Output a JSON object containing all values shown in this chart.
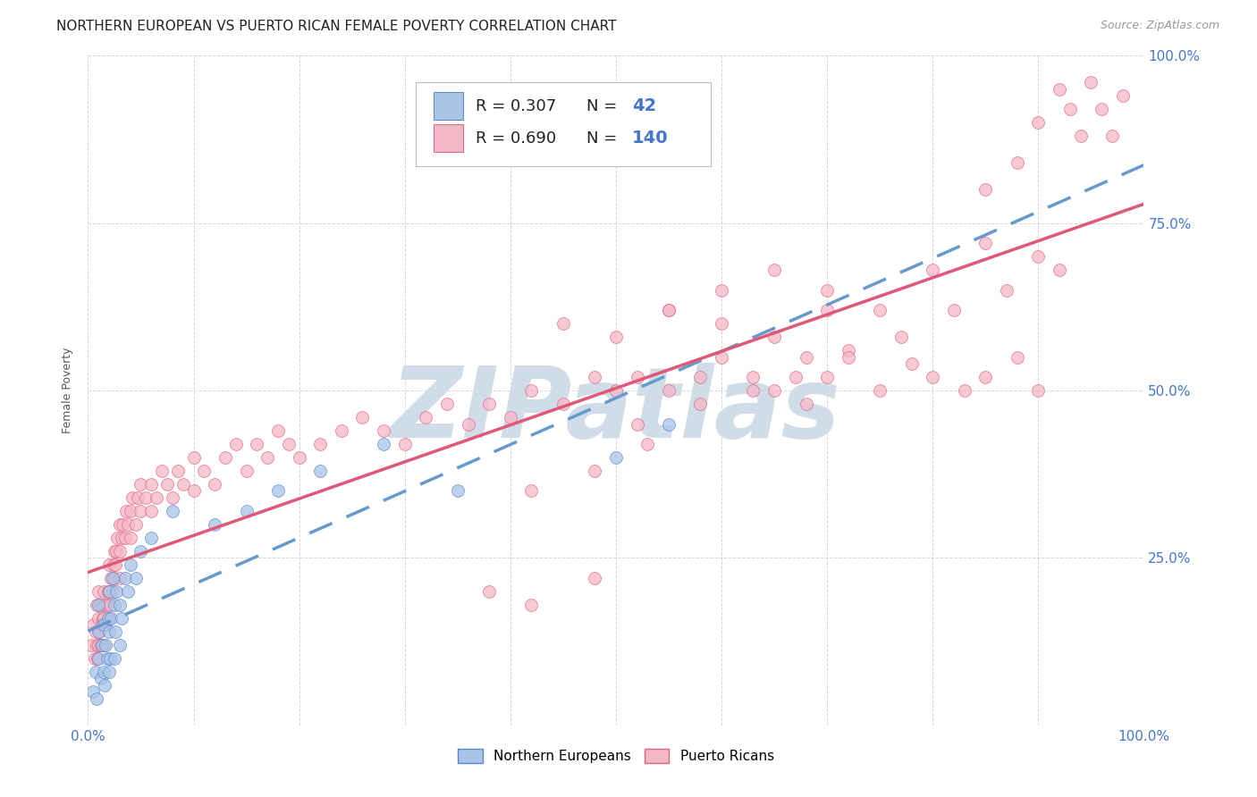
{
  "title": "NORTHERN EUROPEAN VS PUERTO RICAN FEMALE POVERTY CORRELATION CHART",
  "source": "Source: ZipAtlas.com",
  "ylabel": "Female Poverty",
  "xlim": [
    0.0,
    1.0
  ],
  "ylim": [
    0.0,
    1.0
  ],
  "xtick_positions": [
    0.0,
    0.1,
    0.2,
    0.3,
    0.4,
    0.5,
    0.6,
    0.7,
    0.8,
    0.9,
    1.0
  ],
  "xtick_labels_show": {
    "0.0": "0.0%",
    "1.0": "100.0%"
  },
  "ytick_positions": [
    0.0,
    0.25,
    0.5,
    0.75,
    1.0
  ],
  "ytick_right_labels": [
    "0.0%",
    "25.0%",
    "50.0%",
    "75.0%",
    "100.0%"
  ],
  "group1_name": "Northern Europeans",
  "group1_R": 0.307,
  "group1_N": 42,
  "group1_color": "#aac4e8",
  "group1_edge_color": "#5588cc",
  "group1_line_color": "#6699cc",
  "group2_name": "Puerto Ricans",
  "group2_R": 0.69,
  "group2_N": 140,
  "group2_color": "#f5b8c8",
  "group2_edge_color": "#e06080",
  "group2_line_color": "#e05878",
  "watermark_color": "#d0dde8",
  "background_color": "#ffffff",
  "grid_color": "#cccccc",
  "title_fontsize": 11,
  "axis_label_fontsize": 9,
  "tick_fontsize": 11,
  "right_ytick_color": "#4477cc",
  "legend_text_color": "#222222",
  "legend_N_color": "#4477cc",
  "group1_x": [
    0.005,
    0.007,
    0.008,
    0.01,
    0.01,
    0.01,
    0.012,
    0.013,
    0.015,
    0.015,
    0.016,
    0.017,
    0.018,
    0.019,
    0.02,
    0.02,
    0.02,
    0.021,
    0.022,
    0.023,
    0.025,
    0.025,
    0.026,
    0.027,
    0.03,
    0.03,
    0.032,
    0.035,
    0.038,
    0.04,
    0.045,
    0.05,
    0.06,
    0.08,
    0.12,
    0.15,
    0.18,
    0.22,
    0.28,
    0.35,
    0.5,
    0.55
  ],
  "group1_y": [
    0.05,
    0.08,
    0.04,
    0.1,
    0.14,
    0.18,
    0.07,
    0.12,
    0.08,
    0.15,
    0.06,
    0.12,
    0.1,
    0.16,
    0.08,
    0.14,
    0.2,
    0.1,
    0.16,
    0.22,
    0.1,
    0.18,
    0.14,
    0.2,
    0.12,
    0.18,
    0.16,
    0.22,
    0.2,
    0.24,
    0.22,
    0.26,
    0.28,
    0.32,
    0.3,
    0.32,
    0.35,
    0.38,
    0.42,
    0.35,
    0.4,
    0.45
  ],
  "group2_x": [
    0.003,
    0.005,
    0.006,
    0.007,
    0.008,
    0.008,
    0.009,
    0.01,
    0.01,
    0.01,
    0.011,
    0.012,
    0.012,
    0.013,
    0.014,
    0.015,
    0.015,
    0.015,
    0.016,
    0.017,
    0.018,
    0.019,
    0.02,
    0.02,
    0.02,
    0.021,
    0.022,
    0.023,
    0.024,
    0.025,
    0.025,
    0.026,
    0.027,
    0.028,
    0.03,
    0.03,
    0.03,
    0.032,
    0.033,
    0.035,
    0.036,
    0.038,
    0.04,
    0.04,
    0.042,
    0.045,
    0.047,
    0.05,
    0.05,
    0.055,
    0.06,
    0.06,
    0.065,
    0.07,
    0.075,
    0.08,
    0.085,
    0.09,
    0.1,
    0.1,
    0.11,
    0.12,
    0.13,
    0.14,
    0.15,
    0.16,
    0.17,
    0.18,
    0.19,
    0.2,
    0.22,
    0.24,
    0.26,
    0.28,
    0.3,
    0.32,
    0.34,
    0.36,
    0.38,
    0.4,
    0.42,
    0.45,
    0.48,
    0.5,
    0.52,
    0.55,
    0.58,
    0.6,
    0.63,
    0.65,
    0.68,
    0.7,
    0.72,
    0.75,
    0.78,
    0.8,
    0.83,
    0.85,
    0.88,
    0.9,
    0.85,
    0.88,
    0.9,
    0.92,
    0.93,
    0.94,
    0.95,
    0.96,
    0.97,
    0.98,
    0.45,
    0.5,
    0.55,
    0.6,
    0.65,
    0.7,
    0.38,
    0.42,
    0.48,
    0.68,
    0.55,
    0.6,
    0.65,
    0.7,
    0.75,
    0.8,
    0.85,
    0.9,
    0.52,
    0.58,
    0.63,
    0.67,
    0.72,
    0.77,
    0.82,
    0.87,
    0.92,
    0.42,
    0.48,
    0.53
  ],
  "group2_y": [
    0.12,
    0.15,
    0.1,
    0.14,
    0.12,
    0.18,
    0.1,
    0.12,
    0.16,
    0.2,
    0.14,
    0.12,
    0.18,
    0.15,
    0.16,
    0.12,
    0.16,
    0.2,
    0.18,
    0.15,
    0.18,
    0.2,
    0.16,
    0.2,
    0.24,
    0.18,
    0.22,
    0.2,
    0.24,
    0.22,
    0.26,
    0.24,
    0.26,
    0.28,
    0.22,
    0.26,
    0.3,
    0.28,
    0.3,
    0.28,
    0.32,
    0.3,
    0.28,
    0.32,
    0.34,
    0.3,
    0.34,
    0.32,
    0.36,
    0.34,
    0.32,
    0.36,
    0.34,
    0.38,
    0.36,
    0.34,
    0.38,
    0.36,
    0.35,
    0.4,
    0.38,
    0.36,
    0.4,
    0.42,
    0.38,
    0.42,
    0.4,
    0.44,
    0.42,
    0.4,
    0.42,
    0.44,
    0.46,
    0.44,
    0.42,
    0.46,
    0.48,
    0.45,
    0.48,
    0.46,
    0.5,
    0.48,
    0.52,
    0.5,
    0.52,
    0.5,
    0.52,
    0.55,
    0.52,
    0.5,
    0.55,
    0.52,
    0.56,
    0.5,
    0.54,
    0.52,
    0.5,
    0.52,
    0.55,
    0.5,
    0.8,
    0.84,
    0.9,
    0.95,
    0.92,
    0.88,
    0.96,
    0.92,
    0.88,
    0.94,
    0.6,
    0.58,
    0.62,
    0.6,
    0.58,
    0.62,
    0.2,
    0.18,
    0.22,
    0.48,
    0.62,
    0.65,
    0.68,
    0.65,
    0.62,
    0.68,
    0.72,
    0.7,
    0.45,
    0.48,
    0.5,
    0.52,
    0.55,
    0.58,
    0.62,
    0.65,
    0.68,
    0.35,
    0.38,
    0.42
  ],
  "blue_line_start_x": 0.0,
  "blue_line_end_x": 1.0,
  "pink_line_start_x": 0.0,
  "pink_line_end_x": 1.0
}
